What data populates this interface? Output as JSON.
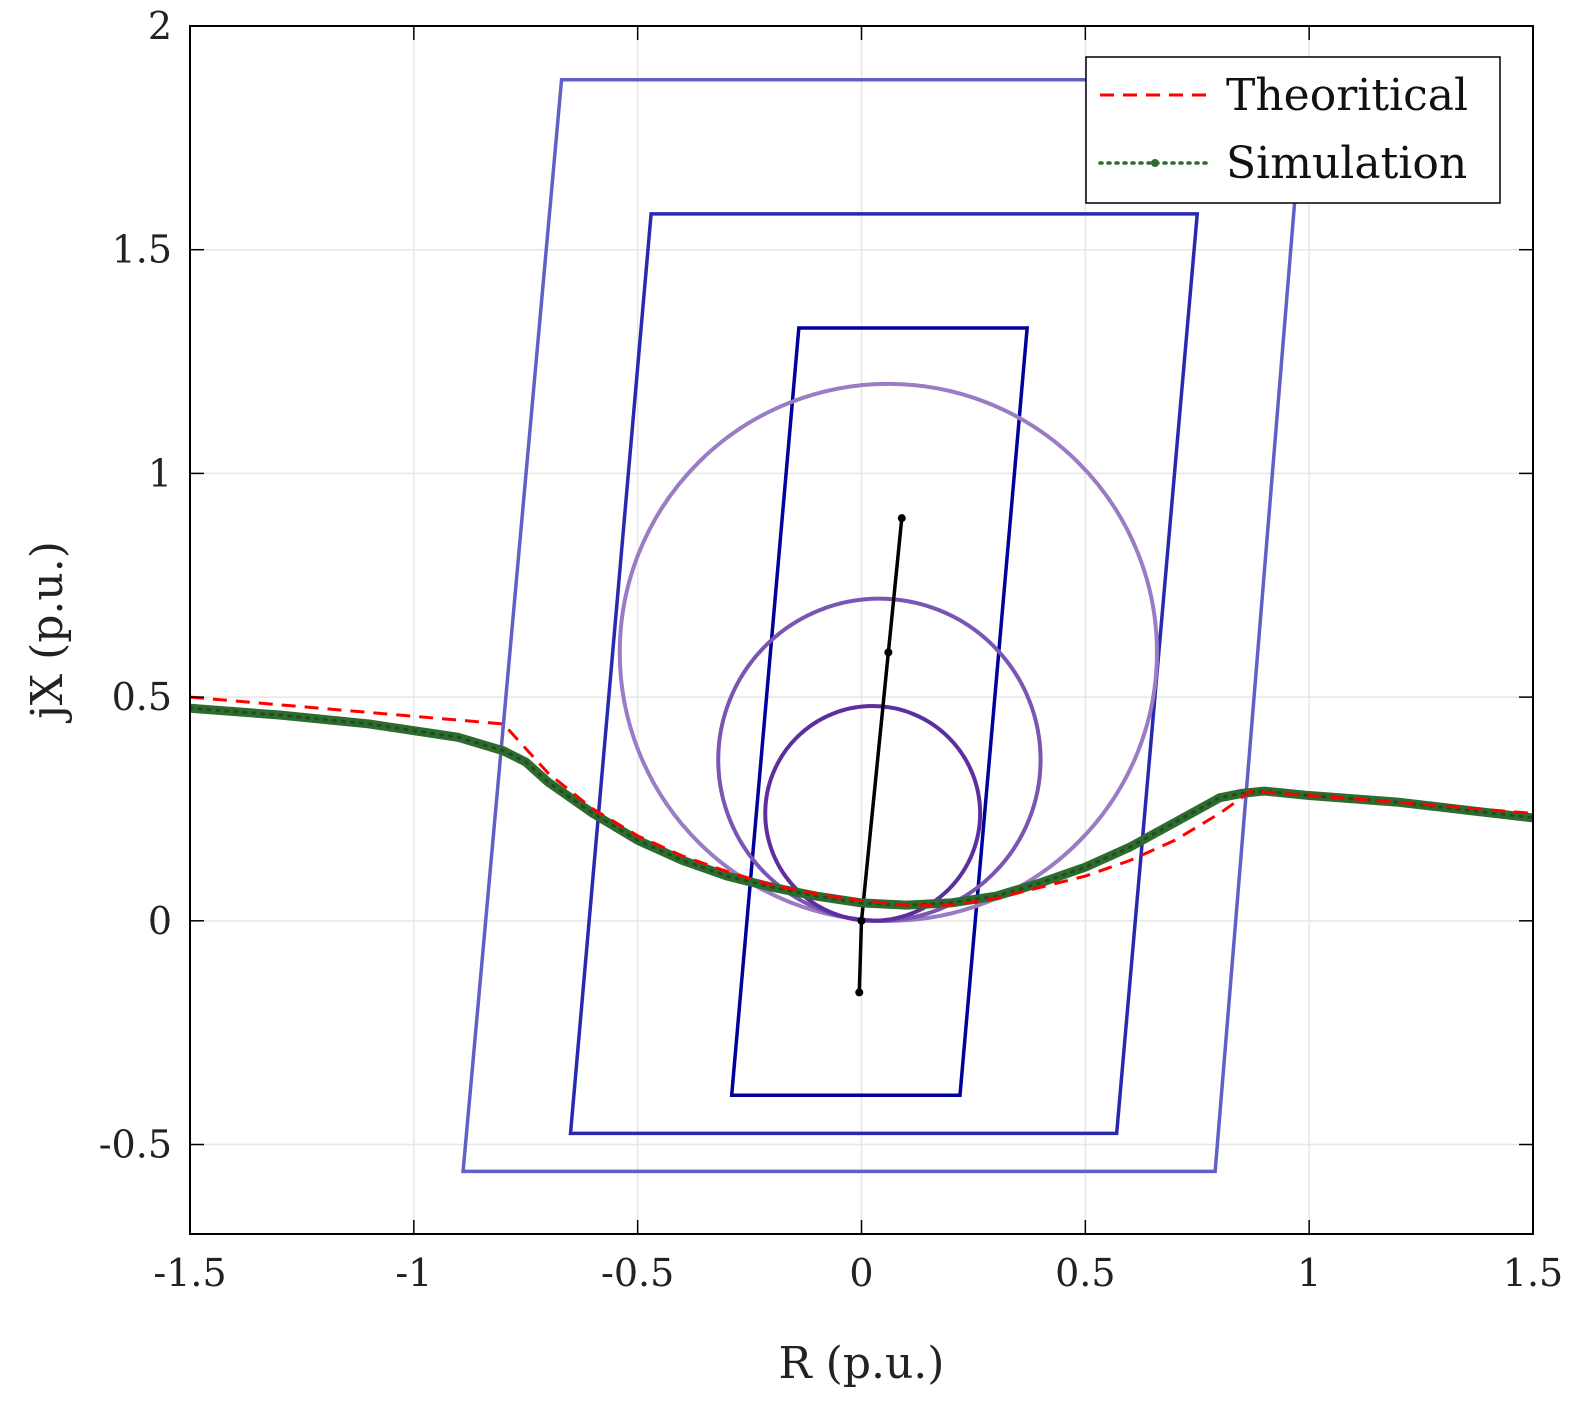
{
  "chart_data": {
    "type": "line",
    "title": "",
    "xlabel": "R (p.u.)",
    "ylabel": "jX (p.u.)",
    "xlim": [
      -1.5,
      1.5
    ],
    "ylim": [
      -0.7,
      2.0
    ],
    "xticks": [
      -1.5,
      -1,
      -0.5,
      0,
      0.5,
      1,
      1.5
    ],
    "xtick_labels": [
      "-1.5",
      "-1",
      "-0.5",
      "0",
      "0.5",
      "1",
      "1.5"
    ],
    "yticks": [
      -0.5,
      0,
      0.5,
      1,
      1.5,
      2
    ],
    "ytick_labels": [
      "-0.5",
      "0",
      "0.5",
      "1",
      "1.5",
      "2"
    ],
    "grid": true,
    "legend_position": "top-right",
    "series": [
      {
        "name": "Theoritical",
        "color": "#ff0000",
        "style": "dashed",
        "x": [
          -1.5,
          -0.8,
          -0.7,
          -0.6,
          -0.5,
          -0.4,
          -0.3,
          -0.2,
          -0.1,
          0.0,
          0.1,
          0.2,
          0.3,
          0.4,
          0.5,
          0.6,
          0.7,
          0.8,
          0.87,
          1.0,
          1.2,
          1.5
        ],
        "y": [
          0.5,
          0.44,
          0.33,
          0.25,
          0.19,
          0.145,
          0.11,
          0.08,
          0.06,
          0.045,
          0.035,
          0.035,
          0.05,
          0.075,
          0.1,
          0.135,
          0.18,
          0.24,
          0.29,
          0.28,
          0.265,
          0.24
        ]
      },
      {
        "name": "Simulation",
        "color": "#2e6b2e",
        "style": "dotted-markers",
        "x": [
          -1.5,
          -1.3,
          -1.1,
          -0.9,
          -0.8,
          -0.75,
          -0.7,
          -0.6,
          -0.5,
          -0.4,
          -0.3,
          -0.2,
          -0.1,
          0.0,
          0.1,
          0.2,
          0.3,
          0.4,
          0.5,
          0.6,
          0.7,
          0.8,
          0.85,
          0.9,
          1.0,
          1.2,
          1.5
        ],
        "y": [
          0.475,
          0.46,
          0.44,
          0.41,
          0.38,
          0.355,
          0.31,
          0.24,
          0.18,
          0.135,
          0.1,
          0.075,
          0.055,
          0.04,
          0.035,
          0.04,
          0.055,
          0.085,
          0.12,
          0.165,
          0.22,
          0.275,
          0.285,
          0.29,
          0.28,
          0.265,
          0.23
        ]
      }
    ],
    "overlays": [
      {
        "kind": "polygon",
        "name": "zone-3-quadrilateral",
        "color": "#6060c8",
        "points": [
          [
            -0.67,
            1.88
          ],
          [
            0.99,
            1.88
          ],
          [
            0.79,
            -0.56
          ],
          [
            -0.89,
            -0.56
          ]
        ]
      },
      {
        "kind": "polygon",
        "name": "zone-2-quadrilateral",
        "color": "#2828b0",
        "points": [
          [
            -0.47,
            1.58
          ],
          [
            0.75,
            1.58
          ],
          [
            0.57,
            -0.475
          ],
          [
            -0.65,
            -0.475
          ]
        ]
      },
      {
        "kind": "polygon",
        "name": "zone-1-quadrilateral",
        "color": "#00009c",
        "points": [
          [
            -0.14,
            1.325
          ],
          [
            0.37,
            1.325
          ],
          [
            0.22,
            -0.39
          ],
          [
            -0.29,
            -0.39
          ]
        ]
      },
      {
        "kind": "circle",
        "name": "zone-3-mho-circle",
        "color": "#9a7cc4",
        "cx": 0.06,
        "cy": 0.6,
        "r": 0.6
      },
      {
        "kind": "circle",
        "name": "zone-2-mho-circle",
        "color": "#7a56b4",
        "cx": 0.04,
        "cy": 0.36,
        "r": 0.36
      },
      {
        "kind": "circle",
        "name": "zone-1-mho-circle",
        "color": "#5e2ea0",
        "cx": 0.025,
        "cy": 0.24,
        "r": 0.24
      },
      {
        "kind": "line",
        "name": "line-impedance-characteristic",
        "color": "#000000",
        "points": [
          [
            -0.005,
            -0.16
          ],
          [
            0.0,
            0.0
          ],
          [
            0.06,
            0.6
          ],
          [
            0.09,
            0.9
          ]
        ]
      }
    ]
  }
}
